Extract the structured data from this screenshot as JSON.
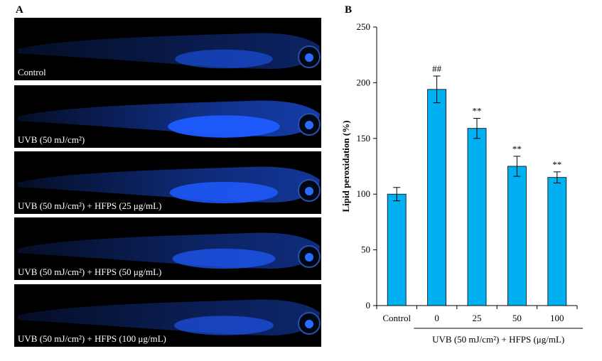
{
  "panel_a": {
    "letter": "A",
    "panels": [
      {
        "label": "Control",
        "variant": "control"
      },
      {
        "label": "UVB (50 mJ/cm²)",
        "variant": "uvb"
      },
      {
        "label": "UVB (50 mJ/cm²) + HFPS (25 μg/mL)",
        "variant": "hfps25"
      },
      {
        "label": "UVB (50 mJ/cm²) + HFPS (50 μg/mL)",
        "variant": "hfps50"
      },
      {
        "label": "UVB (50 mJ/cm²) + HFPS (100 μg/mL)",
        "variant": "hfps100"
      }
    ],
    "colors": {
      "background": "#000000",
      "fluorescence": "#1f5bff",
      "eye": "#2a6bff"
    }
  },
  "panel_b": {
    "letter": "B",
    "group_label": "UVB (50 mJ/cm²) + HFPS (μg/mL)"
  },
  "chart_data": {
    "type": "bar",
    "categories": [
      "Control",
      "0",
      "25",
      "50",
      "100"
    ],
    "values": [
      100,
      194,
      159,
      125,
      115
    ],
    "errors": [
      6,
      12,
      9,
      9,
      5
    ],
    "annotations": [
      "",
      "##",
      "**",
      "**",
      "**"
    ],
    "title": "",
    "xlabel": "",
    "ylabel": "Lipid peroxidation (%)",
    "ylim": [
      0,
      250
    ],
    "yticks": [
      0,
      50,
      100,
      150,
      200,
      250
    ],
    "grid": false,
    "legend": "none",
    "bar_color": "#00b0f0"
  }
}
